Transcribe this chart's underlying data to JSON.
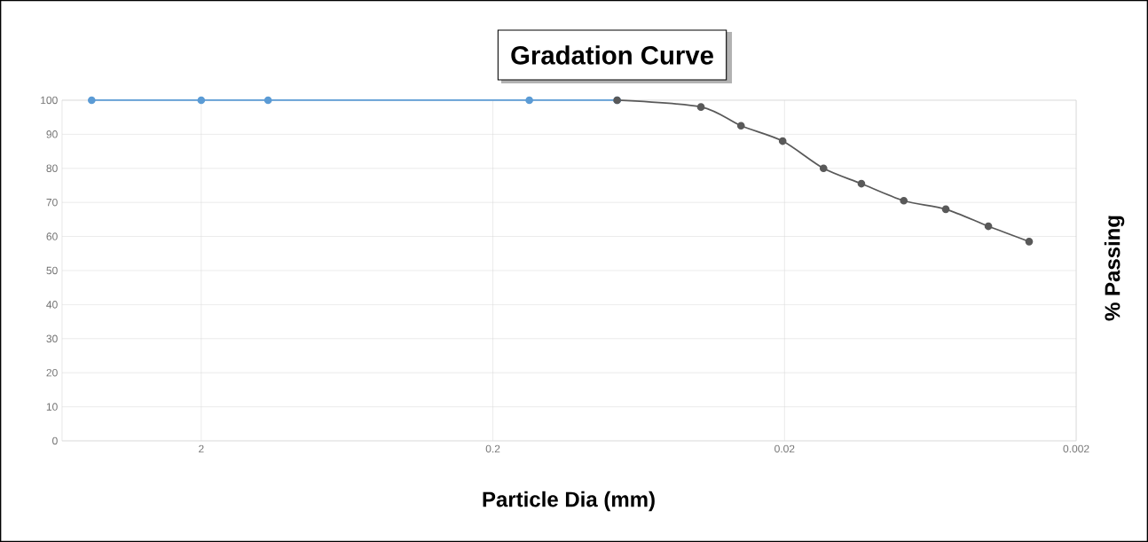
{
  "chart_data": {
    "type": "line",
    "title": "Gradation Curve",
    "xlabel": "Particle Dia (mm)",
    "ylabel": "% Passing",
    "log": "x",
    "grid": true,
    "marker": "circle",
    "line_style": "solid",
    "xlim": [
      6,
      0.002
    ],
    "xticks": [
      2,
      0.2,
      0.02,
      0.002
    ],
    "ylim": [
      0,
      100
    ],
    "yticks": [
      0,
      10,
      20,
      30,
      40,
      50,
      60,
      70,
      80,
      90,
      100
    ],
    "series": [
      {
        "color": "#5b9bd5",
        "x": [
          4.75,
          2,
          1.18,
          0.15,
          0.075
        ],
        "values": [
          100,
          100,
          100,
          100,
          100
        ]
      },
      {
        "color": "#595959",
        "x": [
          0.075,
          0.0387,
          0.0282,
          0.0203,
          0.0147,
          0.0109,
          0.0078,
          0.0056,
          0.004,
          0.0029
        ],
        "values": [
          100,
          98,
          92.5,
          88,
          80,
          75.5,
          70.5,
          68,
          63,
          58.5
        ]
      }
    ]
  }
}
